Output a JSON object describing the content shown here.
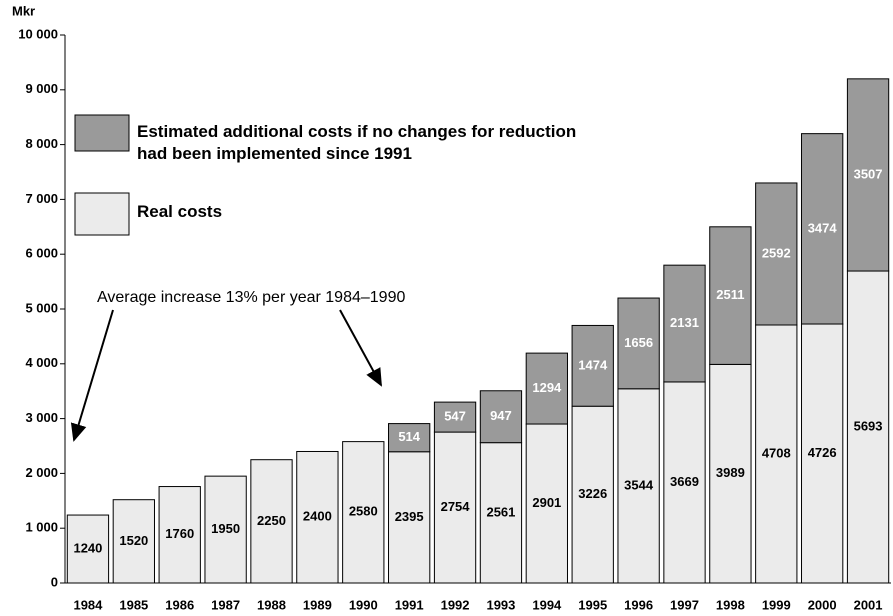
{
  "chart_data": {
    "type": "bar",
    "stacked": true,
    "y_label": "Mkr",
    "annotation": "Average increase 13% per year 1984–1990",
    "categories": [
      "1984",
      "1985",
      "1986",
      "1987",
      "1988",
      "1989",
      "1990",
      "1991",
      "1992",
      "1993",
      "1994",
      "1995",
      "1996",
      "1997",
      "1998",
      "1999",
      "2000",
      "2001"
    ],
    "series": [
      {
        "name": "Real costs",
        "color": "#ebebeb",
        "values": [
          1240,
          1520,
          1760,
          1950,
          2250,
          2400,
          2580,
          2395,
          2754,
          2561,
          2901,
          3226,
          3544,
          3669,
          3989,
          4708,
          4726,
          5693
        ]
      },
      {
        "name": "Estimated additional costs if no changes for reduction had been implemented since 1991",
        "color": "#9a9a9a",
        "values": [
          null,
          null,
          null,
          null,
          null,
          null,
          null,
          514,
          547,
          947,
          1294,
          1474,
          1656,
          2131,
          2511,
          2592,
          3474,
          3507
        ]
      }
    ],
    "ylim": [
      0,
      10000
    ],
    "yticks": [
      0,
      {
        "value": 1000,
        "label": "1 000"
      },
      {
        "value": 2000,
        "label": "2 000"
      },
      {
        "value": 3000,
        "label": "3 000"
      },
      {
        "value": 4000,
        "label": "4 000"
      },
      {
        "value": 5000,
        "label": "5 000"
      },
      {
        "value": 6000,
        "label": "6 000"
      },
      {
        "value": 7000,
        "label": "7 000"
      },
      {
        "value": 8000,
        "label": "8 000"
      },
      {
        "value": 9000,
        "label": "9 000"
      },
      {
        "value": 10000,
        "label": "10 000"
      }
    ]
  }
}
